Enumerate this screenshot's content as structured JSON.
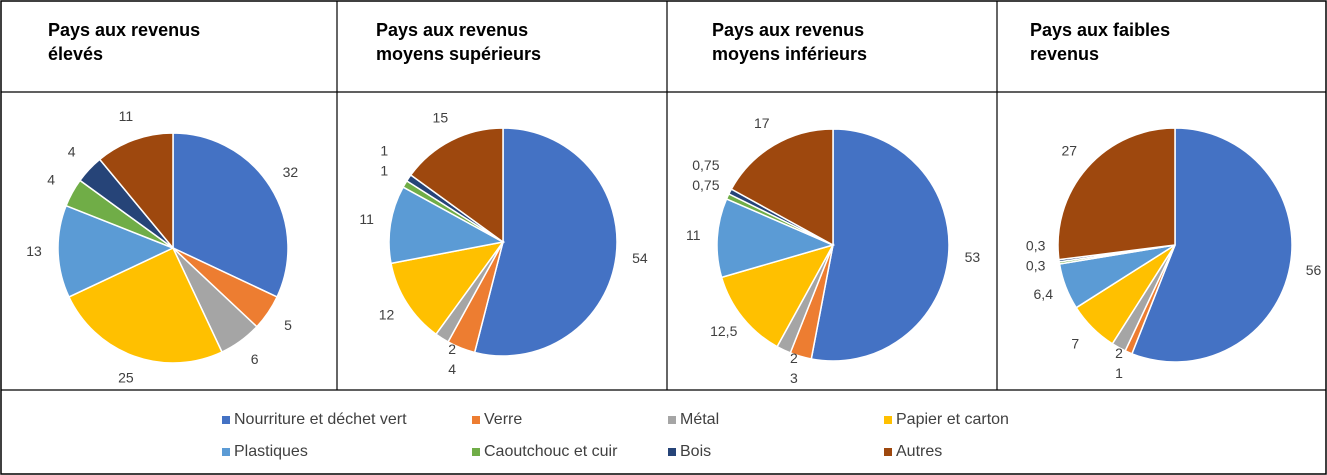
{
  "chart_data": [
    {
      "type": "pie",
      "title": "Pays aux revenus élevés",
      "categories": [
        "Nourriture et déchet vert",
        "Verre",
        "Métal",
        "Papier et carton",
        "Plastiques",
        "Caoutchouc et cuir",
        "Bois",
        "Autres"
      ],
      "values": [
        32,
        5,
        6,
        25,
        13,
        4,
        4,
        11
      ],
      "colors": [
        "#4472c4",
        "#ed7d31",
        "#a5a5a5",
        "#ffc000",
        "#5b9bd5",
        "#70ad47",
        "#264478",
        "#9e480e"
      ]
    },
    {
      "type": "pie",
      "title": "Pays aux revenus moyens supérieurs",
      "categories": [
        "Nourriture et déchet vert",
        "Verre",
        "Métal",
        "Papier et carton",
        "Plastiques",
        "Caoutchouc et cuir",
        "Bois",
        "Autres"
      ],
      "values": [
        54,
        4,
        2,
        12,
        11,
        1,
        1,
        15
      ],
      "colors": [
        "#4472c4",
        "#ed7d31",
        "#a5a5a5",
        "#ffc000",
        "#5b9bd5",
        "#70ad47",
        "#264478",
        "#9e480e"
      ]
    },
    {
      "type": "pie",
      "title": "Pays aux revenus moyens inférieurs",
      "categories": [
        "Nourriture et déchet vert",
        "Verre",
        "Métal",
        "Papier et carton",
        "Plastiques",
        "Caoutchouc et cuir",
        "Bois",
        "Autres"
      ],
      "values": [
        53,
        3,
        2,
        12.5,
        11,
        0.75,
        0.75,
        17
      ],
      "value_labels": [
        "53",
        "3",
        "2",
        "12,5",
        "11",
        "0,75",
        "0,75",
        "17"
      ],
      "colors": [
        "#4472c4",
        "#ed7d31",
        "#a5a5a5",
        "#ffc000",
        "#5b9bd5",
        "#70ad47",
        "#264478",
        "#9e480e"
      ]
    },
    {
      "type": "pie",
      "title": "Pays aux faibles revenus",
      "categories": [
        "Nourriture et déchet vert",
        "Verre",
        "Métal",
        "Papier et carton",
        "Plastiques",
        "Caoutchouc et cuir",
        "Bois",
        "Autres"
      ],
      "values": [
        56,
        1,
        2,
        7,
        6.4,
        0.3,
        0.3,
        27
      ],
      "value_labels": [
        "56",
        "1",
        "2",
        "7",
        "6,4",
        "0,3",
        "0,3",
        "27"
      ],
      "colors": [
        "#4472c4",
        "#ed7d31",
        "#a5a5a5",
        "#ffc000",
        "#5b9bd5",
        "#70ad47",
        "#264478",
        "#9e480e"
      ]
    }
  ]
}
